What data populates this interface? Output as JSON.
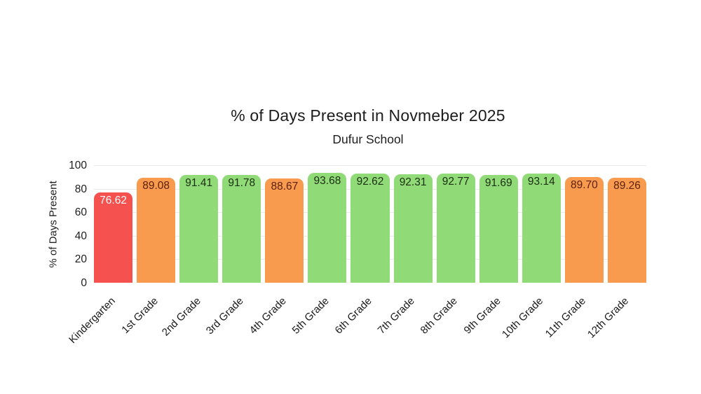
{
  "chart_data": {
    "type": "bar",
    "title": "% of Days Present in Novmeber 2025",
    "subtitle": "Dufur School",
    "ylabel": "% of Days Present",
    "xlabel": "",
    "categories": [
      "Kindergarten",
      "1st Grade",
      "2nd Grade",
      "3rd Grade",
      "4th Grade",
      "5th Grade",
      "6th Grade",
      "7th Grade",
      "8th Grade",
      "9th Grade",
      "10th Grade",
      "11th Grade",
      "12th Grade"
    ],
    "values": [
      76.62,
      89.08,
      91.41,
      91.78,
      88.67,
      93.68,
      92.62,
      92.31,
      92.77,
      91.69,
      93.14,
      89.7,
      89.26
    ],
    "value_labels": [
      "76.62",
      "89.08",
      "91.41",
      "91.78",
      "88.67",
      "93.68",
      "92.62",
      "92.31",
      "92.77",
      "91.69",
      "93.14",
      "89.70",
      "89.26"
    ],
    "bar_color_keys": [
      "red",
      "orange",
      "green",
      "green",
      "orange",
      "green",
      "green",
      "green",
      "green",
      "green",
      "green",
      "orange",
      "orange"
    ],
    "palette": {
      "red": "#f4514f",
      "orange": "#f89b4f",
      "green": "#90db78"
    },
    "value_label_colors": {
      "red": "#ffffff",
      "orange": "#5c200c",
      "green": "#1c2e10"
    },
    "yticks": [
      0,
      20,
      40,
      60,
      80,
      100
    ],
    "ylim": [
      0,
      100
    ],
    "grid": "horizontal-only",
    "legend": "none"
  }
}
